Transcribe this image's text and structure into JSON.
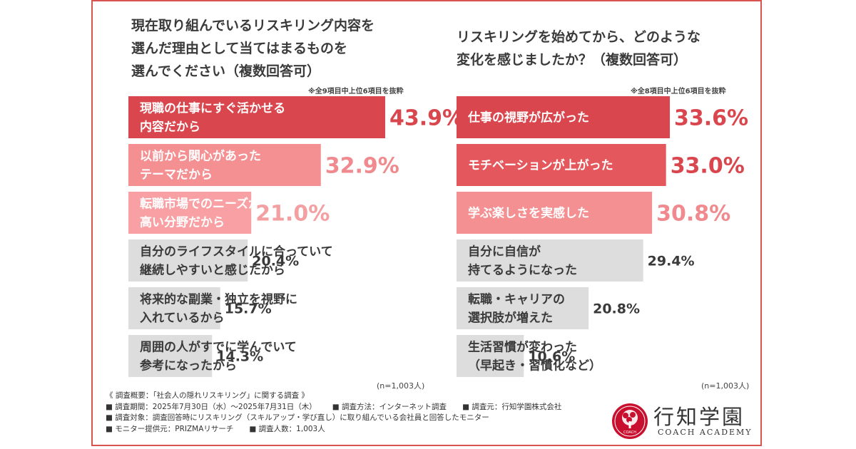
{
  "left": {
    "question": "現在取り組んでいるリスキリング内容を\n選んだ理由として当てはまるものを\n選んでください（複数回答可）",
    "note": "※全9項目中上位6項目を抜粋",
    "n": "(n=1,003人)"
  },
  "right": {
    "question": "リスキリングを始めてから、どのような\n変化を感じましたか？（複数回答可）",
    "note": "※全8項目中上位6項目を抜粋",
    "n": "(n=1,003人)"
  },
  "chart_data": [
    {
      "type": "bar",
      "orientation": "horizontal",
      "title": "現在取り組んでいるリスキリング内容を選んだ理由として当てはまるものを選んでください（複数回答可）",
      "unit": "%",
      "categories": [
        [
          "現職の仕事にすぐ活かせる",
          "内容だから"
        ],
        [
          "以前から関心があった",
          "テーマだから"
        ],
        [
          "転職市場でのニーズが",
          "高い分野だから"
        ],
        [
          "自分のライフスタイルに合っていて",
          "継続しやすいと感じたから"
        ],
        [
          "将来的な副業・独立を視野に",
          "入れているから"
        ],
        [
          "周囲の人がすでに学んでいて",
          "参考になったから"
        ]
      ],
      "values": [
        43.9,
        32.9,
        21.0,
        20.4,
        15.7,
        14.3
      ],
      "value_labels": [
        "43.9%",
        "32.9%",
        "21.0%",
        "20.4%",
        "15.7%",
        "14.3%"
      ],
      "colors": [
        "#d9464d",
        "#f48f92",
        "#f8a0a3",
        "#dddddd",
        "#dddddd",
        "#dddddd"
      ],
      "value_colors": [
        "#d9464d",
        "#f08a8e",
        "#f4a0a3",
        "#3a3a3a",
        "#3a3a3a",
        "#3a3a3a"
      ],
      "label_colors": [
        "#ffffff",
        "#ffffff",
        "#ffffff",
        "#3a3a3a",
        "#3a3a3a",
        "#3a3a3a"
      ]
    },
    {
      "type": "bar",
      "orientation": "horizontal",
      "title": "リスキリングを始めてから、どのような変化を感じましたか？（複数回答可）",
      "unit": "%",
      "categories": [
        [
          "仕事の視野が広がった"
        ],
        [
          "モチベーションが上がった"
        ],
        [
          "学ぶ楽しさを実感した"
        ],
        [
          "自分に自信が",
          "持てるようになった"
        ],
        [
          "転職・キャリアの",
          "選択肢が増えた"
        ],
        [
          "生活習慣が変わった",
          "（早起き・習慣化など）"
        ]
      ],
      "values": [
        33.6,
        33.0,
        30.8,
        29.4,
        20.8,
        10.6
      ],
      "value_labels": [
        "33.6%",
        "33.0%",
        "30.8%",
        "29.4%",
        "20.8%",
        "10.6%"
      ],
      "colors": [
        "#d9464d",
        "#e4585d",
        "#f48f92",
        "#dddddd",
        "#dddddd",
        "#dddddd"
      ],
      "value_colors": [
        "#d9464d",
        "#d9464d",
        "#f08a8e",
        "#3a3a3a",
        "#3a3a3a",
        "#3a3a3a"
      ],
      "label_colors": [
        "#ffffff",
        "#ffffff",
        "#ffffff",
        "#3a3a3a",
        "#3a3a3a",
        "#3a3a3a"
      ]
    }
  ],
  "footer": {
    "lines": [
      [
        "《 調査概要：「社会人の隠れリスキリング」に関する調査 》"
      ],
      [
        "■ 調査期間：2025年7月30日（水）～2025年7月31日（木）",
        "■ 調査方法：インターネット調査",
        "■ 調査元：行知学園株式会社"
      ],
      [
        "■ 調査対象：調査回答時にリスキリング（スキルアップ・学び直し）に取り組んでいる会社員と回答したモニター"
      ],
      [
        "■ モニター提供元：PRIZMAリサーチ",
        "■ 調査人数：1,003人"
      ]
    ]
  },
  "logo": {
    "name": "行知学園",
    "sub": "COACH ACADEMY",
    "emblem_text": "COACH",
    "colors": {
      "primary": "#c8102e"
    }
  }
}
